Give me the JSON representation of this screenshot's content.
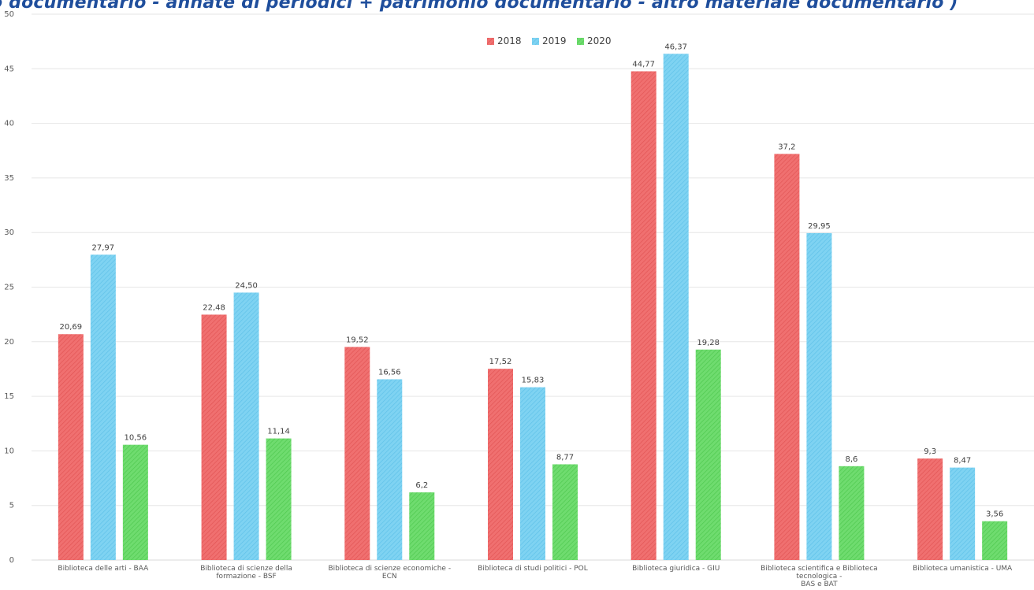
{
  "title": "o documentario - annate di periodici + patrimonio documentario - altro materiale documentario )",
  "chart_data": {
    "type": "bar",
    "categories": [
      [
        "Biblioteca delle arti - BAA"
      ],
      [
        "Biblioteca di scienze della",
        "formazione - BSF"
      ],
      [
        "Biblioteca di scienze economiche -",
        "ECN"
      ],
      [
        "Biblioteca di studi politici - POL"
      ],
      [
        "Biblioteca giuridica - GIU"
      ],
      [
        "Biblioteca scientifica e Biblioteca",
        "tecnologica -",
        "BAS e BAT"
      ],
      [
        "Biblioteca umanistica - UMA"
      ]
    ],
    "series": [
      {
        "name": "2018",
        "color": "#f07070",
        "values": [
          20.69,
          22.48,
          19.52,
          17.52,
          44.77,
          37.2,
          9.3
        ],
        "labels": [
          "20,69",
          "22,48",
          "19,52",
          "17,52",
          "44,77",
          "37,2",
          "9,3"
        ]
      },
      {
        "name": "2019",
        "color": "#7fd3f2",
        "values": [
          27.97,
          24.5,
          16.56,
          15.83,
          46.37,
          29.95,
          8.47
        ],
        "labels": [
          "27,97",
          "24,50",
          "16,56",
          "15,83",
          "46,37",
          "29,95",
          "8,47"
        ]
      },
      {
        "name": "2020",
        "color": "#6fdc6f",
        "values": [
          10.56,
          11.14,
          6.2,
          8.77,
          19.28,
          8.6,
          3.56
        ],
        "labels": [
          "10,56",
          "11,14",
          "6,2",
          "8,77",
          "19,28",
          "8,6",
          "3,56"
        ]
      }
    ],
    "ylim": [
      0,
      50
    ],
    "yticks": [
      0,
      5,
      10,
      15,
      20,
      25,
      30,
      35,
      40,
      45,
      50
    ],
    "grid": true,
    "legend_position": "top-center",
    "xlabel": "",
    "ylabel": ""
  }
}
